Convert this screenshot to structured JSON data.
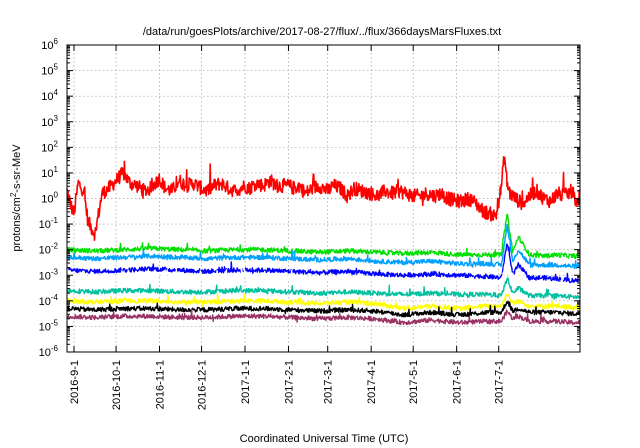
{
  "chart_data": {
    "type": "line",
    "title": "/data/run/goesPlots/archive/2017-08-27/flux/../flux/366daysMarsFluxes.txt",
    "xlabel": "Coordinated Universal Time (UTC)",
    "ylabel_main": "protons/cm",
    "ylabel_sup": "2",
    "ylabel_rest": "-s-sr-MeV",
    "yscale": "log",
    "ylim_exp": [
      -6,
      6
    ],
    "ytick_exponents": [
      -6,
      -5,
      -4,
      -3,
      -2,
      -1,
      0,
      1,
      2,
      3,
      4,
      5,
      6
    ],
    "ytick_base": "10",
    "xlim_days": [
      0,
      366
    ],
    "xticks": [
      {
        "label": "2016-9-1",
        "day": 5
      },
      {
        "label": "2016-10-1",
        "day": 35
      },
      {
        "label": "2016-11-1",
        "day": 66
      },
      {
        "label": "2016-12-1",
        "day": 96
      },
      {
        "label": "2017-1-1",
        "day": 127
      },
      {
        "label": "2017-2-1",
        "day": 158
      },
      {
        "label": "2017-3-1",
        "day": 186
      },
      {
        "label": "2017-4-1",
        "day": 217
      },
      {
        "label": "2017-5-1",
        "day": 247
      },
      {
        "label": "2017-6-1",
        "day": 278
      },
      {
        "label": "2017-7-1",
        "day": 308
      }
    ],
    "grid": true,
    "series_colors": [
      "#ff0000",
      "#00e000",
      "#00a0ff",
      "#0000ff",
      "#ffffff",
      "#00c0a0",
      "#ffff00",
      "#000000",
      "#993366"
    ],
    "series": [
      {
        "name": "",
        "color": "#ff0000",
        "x": [
          0,
          3,
          5,
          8,
          12,
          15,
          20,
          25,
          30,
          35,
          40,
          45,
          50,
          55,
          60,
          66,
          70,
          75,
          80,
          85,
          90,
          96,
          100,
          105,
          110,
          115,
          120,
          127,
          130,
          135,
          140,
          145,
          150,
          158,
          162,
          166,
          170,
          175,
          180,
          186,
          190,
          195,
          200,
          205,
          210,
          217,
          222,
          227,
          232,
          237,
          242,
          247,
          252,
          257,
          262,
          267,
          272,
          278,
          282,
          287,
          292,
          297,
          302,
          306,
          310,
          312,
          314,
          316,
          320,
          325,
          330,
          335,
          340,
          345,
          350,
          355,
          360,
          364,
          366
        ],
        "y_log10": [
          0.3,
          -0.3,
          -0.6,
          0.6,
          0.3,
          -0.9,
          -1.4,
          0.2,
          0.4,
          0.7,
          1.0,
          0.6,
          0.5,
          0.3,
          0.4,
          0.8,
          0.4,
          0.3,
          0.7,
          0.5,
          0.6,
          0.4,
          0.3,
          0.5,
          0.6,
          0.4,
          0.3,
          0.5,
          0.4,
          0.6,
          0.5,
          0.7,
          0.5,
          0.5,
          0.4,
          0.5,
          0.2,
          0.4,
          0.5,
          0.3,
          0.5,
          0.4,
          0.1,
          0.4,
          0.3,
          0.2,
          0.1,
          0.3,
          0.2,
          0.3,
          0.2,
          0.1,
          0.1,
          0.2,
          0.1,
          0.2,
          0.0,
          -0.1,
          -0.1,
          0.0,
          -0.2,
          -0.5,
          -0.6,
          -0.7,
          0.5,
          1.7,
          0.6,
          0.2,
          0.0,
          -0.2,
          0.1,
          0.3,
          0.0,
          -0.1,
          0.2,
          0.1,
          0.3,
          -0.2,
          0.2
        ]
      },
      {
        "name": "",
        "color": "#00e000",
        "x": [
          0,
          20,
          40,
          60,
          80,
          100,
          120,
          140,
          160,
          180,
          200,
          220,
          240,
          260,
          280,
          300,
          310,
          314,
          318,
          322,
          330,
          340,
          350,
          360,
          366
        ],
        "y_log10": [
          -2.0,
          -2.05,
          -2.0,
          -1.95,
          -2.0,
          -2.05,
          -2.0,
          -2.0,
          -2.05,
          -2.1,
          -2.05,
          -2.1,
          -2.15,
          -2.1,
          -2.2,
          -2.2,
          -2.2,
          -0.6,
          -2.1,
          -1.5,
          -2.2,
          -2.25,
          -2.2,
          -2.25,
          -2.25
        ]
      },
      {
        "name": "",
        "color": "#00a0ff",
        "x": [
          0,
          20,
          40,
          60,
          80,
          100,
          120,
          140,
          160,
          180,
          200,
          220,
          240,
          260,
          280,
          300,
          310,
          314,
          318,
          322,
          330,
          340,
          350,
          360,
          366
        ],
        "y_log10": [
          -2.3,
          -2.35,
          -2.3,
          -2.25,
          -2.3,
          -2.35,
          -2.3,
          -2.3,
          -2.35,
          -2.4,
          -2.35,
          -2.45,
          -2.5,
          -2.45,
          -2.55,
          -2.55,
          -2.6,
          -1.0,
          -2.5,
          -2.0,
          -2.6,
          -2.6,
          -2.6,
          -2.65,
          -2.65
        ]
      },
      {
        "name": "",
        "color": "#0000ff",
        "x": [
          0,
          20,
          40,
          60,
          80,
          100,
          120,
          140,
          160,
          180,
          200,
          220,
          240,
          260,
          280,
          300,
          310,
          314,
          318,
          322,
          330,
          340,
          350,
          360,
          366
        ],
        "y_log10": [
          -2.8,
          -2.85,
          -2.8,
          -2.75,
          -2.8,
          -2.85,
          -2.8,
          -2.8,
          -2.85,
          -2.9,
          -2.85,
          -2.95,
          -3.0,
          -2.95,
          -3.0,
          -3.05,
          -3.1,
          -1.7,
          -3.0,
          -2.6,
          -3.1,
          -3.1,
          -3.15,
          -3.2,
          -3.2
        ]
      },
      {
        "name": "",
        "color": "#ffffff",
        "x": [
          0,
          20,
          40,
          60,
          80,
          100,
          120,
          140,
          160,
          180,
          200,
          220,
          240,
          260,
          280,
          300,
          310,
          314,
          318,
          322,
          330,
          340,
          350,
          360,
          366
        ],
        "y_log10": [
          -3.0,
          -3.05,
          -3.0,
          -2.95,
          -3.0,
          -3.05,
          -3.0,
          -3.0,
          -3.05,
          -3.1,
          -3.05,
          -3.15,
          -3.2,
          -3.15,
          -3.2,
          -3.25,
          -3.3,
          -2.2,
          -3.2,
          -2.9,
          -3.3,
          -3.3,
          -3.35,
          -3.4,
          -3.4
        ]
      },
      {
        "name": "",
        "color": "#00c0a0",
        "x": [
          0,
          20,
          40,
          60,
          80,
          100,
          120,
          140,
          160,
          180,
          200,
          220,
          240,
          260,
          280,
          300,
          310,
          314,
          318,
          322,
          330,
          340,
          350,
          360,
          366
        ],
        "y_log10": [
          -3.6,
          -3.65,
          -3.6,
          -3.6,
          -3.65,
          -3.65,
          -3.6,
          -3.6,
          -3.65,
          -3.7,
          -3.65,
          -3.7,
          -3.75,
          -3.7,
          -3.75,
          -3.75,
          -3.8,
          -3.1,
          -3.7,
          -3.5,
          -3.8,
          -3.8,
          -3.8,
          -3.85,
          -3.85
        ]
      },
      {
        "name": "",
        "color": "#ffff00",
        "x": [
          0,
          20,
          40,
          60,
          80,
          100,
          120,
          140,
          160,
          180,
          200,
          220,
          240,
          260,
          280,
          300,
          310,
          314,
          318,
          322,
          330,
          340,
          350,
          360,
          366
        ],
        "y_log10": [
          -4.0,
          -4.05,
          -4.0,
          -4.0,
          -4.05,
          -4.05,
          -4.0,
          -4.0,
          -4.05,
          -4.1,
          -4.05,
          -4.1,
          -4.3,
          -4.2,
          -4.3,
          -4.2,
          -4.2,
          -3.7,
          -4.1,
          -4.0,
          -4.2,
          -4.2,
          -4.2,
          -4.25,
          -4.25
        ]
      },
      {
        "name": "",
        "color": "#000000",
        "x": [
          0,
          20,
          40,
          60,
          80,
          100,
          120,
          140,
          160,
          180,
          200,
          220,
          240,
          260,
          280,
          300,
          310,
          314,
          318,
          322,
          330,
          340,
          350,
          360,
          366
        ],
        "y_log10": [
          -4.3,
          -4.35,
          -4.3,
          -4.3,
          -4.35,
          -4.35,
          -4.3,
          -4.3,
          -4.35,
          -4.4,
          -4.35,
          -4.4,
          -4.55,
          -4.45,
          -4.55,
          -4.45,
          -4.45,
          -4.0,
          -4.4,
          -4.3,
          -4.45,
          -4.45,
          -4.45,
          -4.5,
          -4.5
        ]
      },
      {
        "name": "",
        "color": "#993366",
        "x": [
          0,
          20,
          40,
          60,
          80,
          100,
          120,
          140,
          160,
          180,
          200,
          220,
          240,
          260,
          280,
          300,
          310,
          314,
          318,
          322,
          330,
          340,
          350,
          360,
          366
        ],
        "y_log10": [
          -4.6,
          -4.65,
          -4.6,
          -4.6,
          -4.65,
          -4.65,
          -4.6,
          -4.6,
          -4.65,
          -4.7,
          -4.65,
          -4.7,
          -4.85,
          -4.75,
          -4.85,
          -4.8,
          -4.8,
          -4.4,
          -4.7,
          -4.6,
          -4.8,
          -4.8,
          -4.8,
          -4.85,
          -4.85
        ]
      }
    ]
  }
}
